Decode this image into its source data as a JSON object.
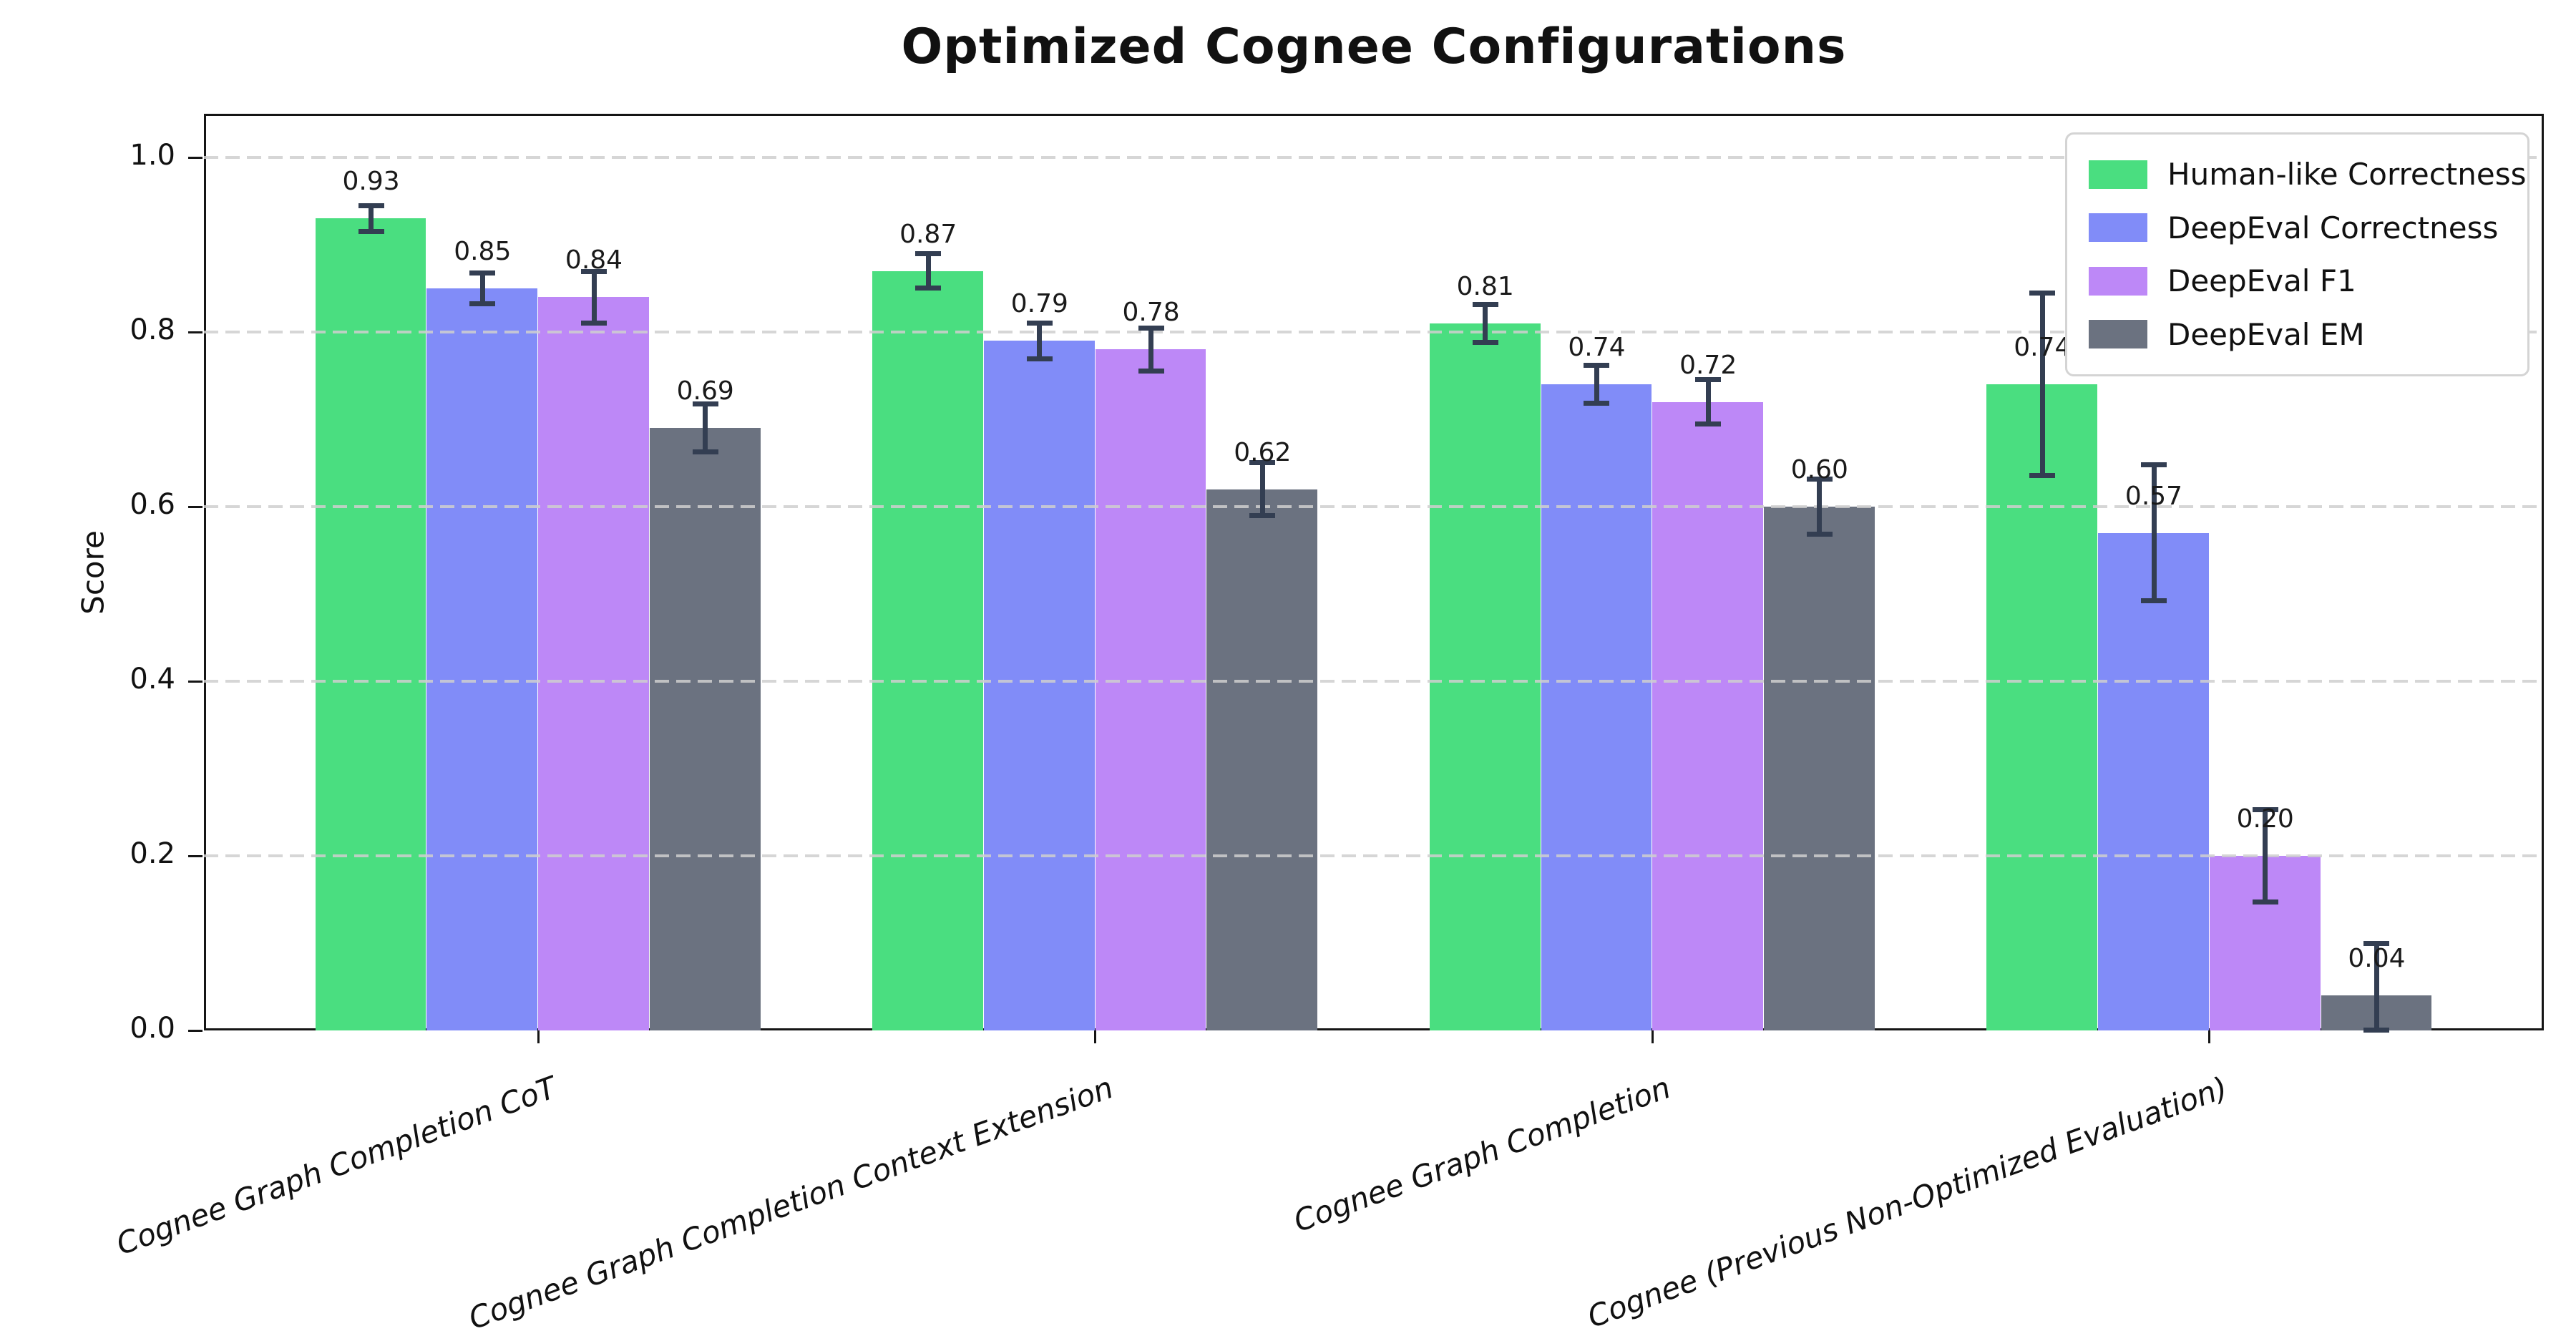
{
  "title": "Optimized Cognee Configurations",
  "chart_data": {
    "type": "bar",
    "title": "Optimized Cognee Configurations",
    "xlabel": "",
    "ylabel": "Score",
    "ylim": [
      0,
      1.05
    ],
    "yticks": [
      "0.0",
      "0.2",
      "0.4",
      "0.6",
      "0.8",
      "1.0"
    ],
    "grid": "horizontal-dashed",
    "legend_position": "upper-right",
    "categories": [
      "Cognee Graph Completion CoT",
      "Cognee Graph Completion Context Extension",
      "Cognee Graph Completion",
      "Cognee (Previous Non-Optimized Evaluation)"
    ],
    "series": [
      {
        "name": "Human-like Correctness",
        "color": "#4ade80",
        "values": [
          0.93,
          0.87,
          0.81,
          0.74
        ],
        "errors": [
          0.015,
          0.02,
          0.022,
          0.105
        ]
      },
      {
        "name": "DeepEval Correctness",
        "color": "#818cf8",
        "values": [
          0.85,
          0.79,
          0.74,
          0.57
        ],
        "errors": [
          0.018,
          0.021,
          0.022,
          0.078
        ]
      },
      {
        "name": "DeepEval F1",
        "color": "#bd88f7",
        "values": [
          0.84,
          0.78,
          0.72,
          0.2
        ],
        "errors": [
          0.03,
          0.025,
          0.026,
          0.053
        ]
      },
      {
        "name": "DeepEval EM",
        "color": "#6b7280",
        "values": [
          0.69,
          0.62,
          0.6,
          0.04
        ],
        "errors": [
          0.028,
          0.031,
          0.032,
          0.06
        ]
      }
    ],
    "bar_label_format": "0.00"
  },
  "colors": {
    "error_bar": "#333e52",
    "grid": "#cfcfcf",
    "spine": "#151515",
    "legend_border": "#d4d4d4",
    "background": "#ffffff"
  }
}
